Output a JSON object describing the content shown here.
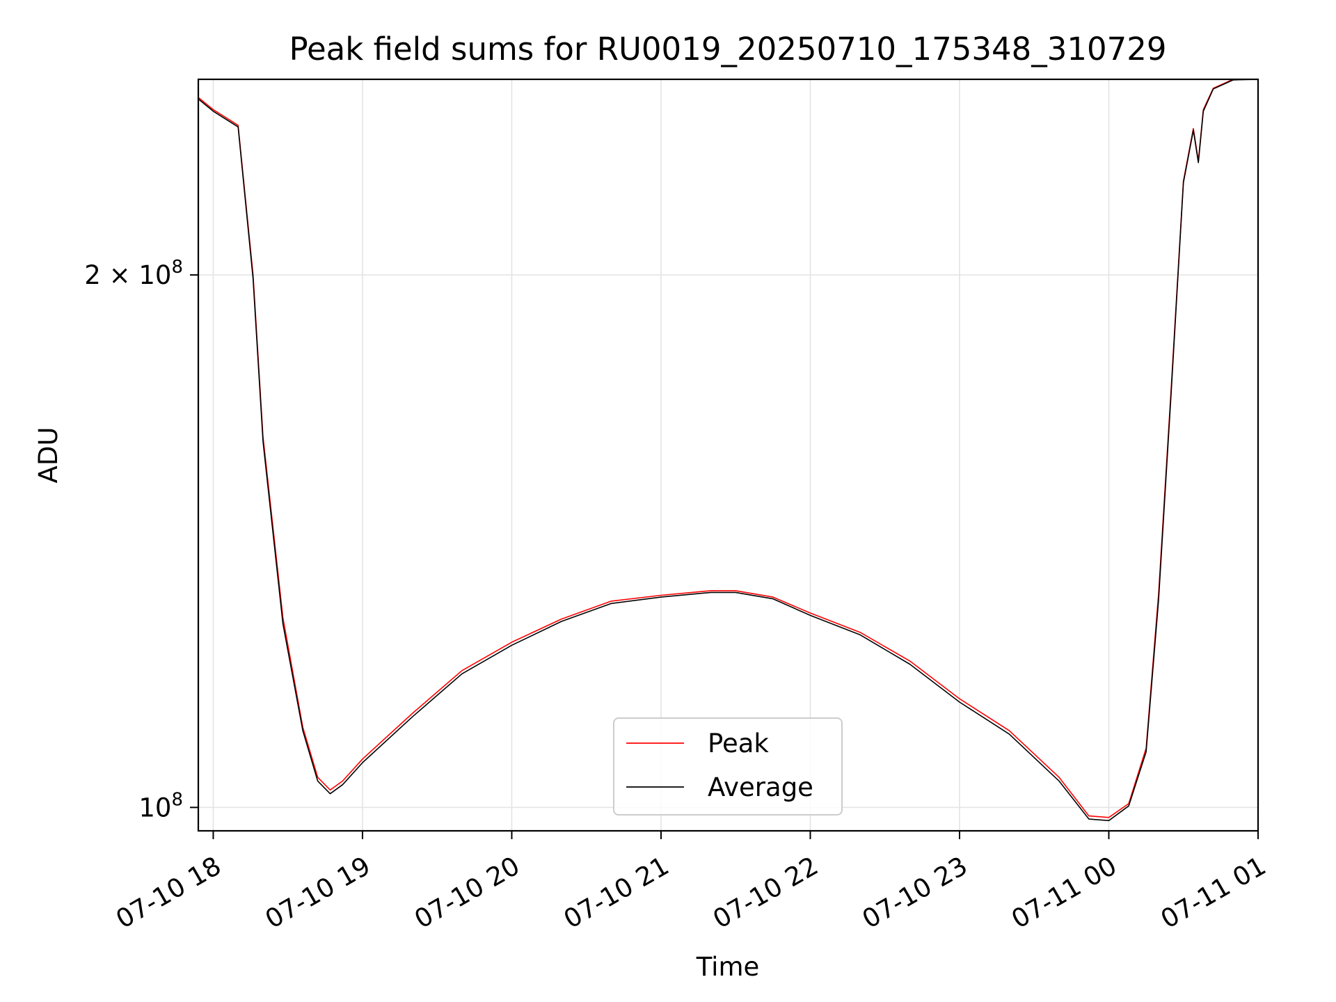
{
  "chart_data": {
    "type": "line",
    "title": "Peak field sums for RU0019_20250710_175348_310729",
    "xlabel": "Time",
    "ylabel": "ADU",
    "x_scale": "time",
    "y_scale": "log",
    "xlim": [
      "2025-07-10 17:54",
      "2025-07-11 01:00"
    ],
    "ylim": [
      97000000,
      258000000
    ],
    "x_ticks": [
      {
        "value": "2025-07-10 18:00",
        "label": "07-10 18"
      },
      {
        "value": "2025-07-10 19:00",
        "label": "07-10 19"
      },
      {
        "value": "2025-07-10 20:00",
        "label": "07-10 20"
      },
      {
        "value": "2025-07-10 21:00",
        "label": "07-10 21"
      },
      {
        "value": "2025-07-10 22:00",
        "label": "07-10 22"
      },
      {
        "value": "2025-07-10 23:00",
        "label": "07-10 23"
      },
      {
        "value": "2025-07-11 00:00",
        "label": "07-11 00"
      },
      {
        "value": "2025-07-11 01:00",
        "label": "07-11 01"
      }
    ],
    "y_ticks": [
      {
        "value": 100000000,
        "mantissa": "",
        "exponent": "8"
      },
      {
        "value": 200000000,
        "mantissa": "2",
        "exponent": "8"
      }
    ],
    "grid": true,
    "legend_position": "lower center",
    "colors": {
      "peak": "#ff0000",
      "average": "#000000"
    },
    "series": [
      {
        "name": "Peak",
        "color": "#ff0000",
        "x": [
          "2025-07-10 17:54",
          "2025-07-10 18:00",
          "2025-07-10 18:10",
          "2025-07-10 18:16",
          "2025-07-10 18:20",
          "2025-07-10 18:28",
          "2025-07-10 18:36",
          "2025-07-10 18:42",
          "2025-07-10 18:47",
          "2025-07-10 18:52",
          "2025-07-10 19:00",
          "2025-07-10 19:20",
          "2025-07-10 19:40",
          "2025-07-10 20:00",
          "2025-07-10 20:20",
          "2025-07-10 20:40",
          "2025-07-10 21:00",
          "2025-07-10 21:20",
          "2025-07-10 21:30",
          "2025-07-10 21:45",
          "2025-07-10 22:00",
          "2025-07-10 22:20",
          "2025-07-10 22:40",
          "2025-07-10 23:00",
          "2025-07-10 23:20",
          "2025-07-10 23:40",
          "2025-07-10 23:52",
          "2025-07-11 00:00",
          "2025-07-11 00:08",
          "2025-07-11 00:15",
          "2025-07-11 00:20",
          "2025-07-11 00:25",
          "2025-07-11 00:30",
          "2025-07-11 00:34",
          "2025-07-11 00:36",
          "2025-07-11 00:38",
          "2025-07-11 00:42",
          "2025-07-11 00:50",
          "2025-07-11 01:00"
        ],
        "y": [
          252000000,
          248000000,
          243000000,
          200000000,
          162000000,
          128000000,
          111000000,
          104000000,
          102300000,
          103500000,
          106500000,
          113000000,
          119500000,
          124000000,
          127800000,
          130800000,
          131800000,
          132600000,
          132600000,
          131500000,
          128800000,
          125600000,
          121000000,
          115200000,
          110500000,
          104000000,
          98900000,
          98700000,
          100500000,
          108000000,
          132000000,
          172000000,
          226000000,
          242000000,
          232000000,
          248000000,
          255000000,
          258000000,
          258000000
        ]
      },
      {
        "name": "Average",
        "color": "#000000",
        "x": [
          "2025-07-10 17:54",
          "2025-07-10 18:00",
          "2025-07-10 18:10",
          "2025-07-10 18:16",
          "2025-07-10 18:20",
          "2025-07-10 18:28",
          "2025-07-10 18:36",
          "2025-07-10 18:42",
          "2025-07-10 18:47",
          "2025-07-10 18:52",
          "2025-07-10 19:00",
          "2025-07-10 19:20",
          "2025-07-10 19:40",
          "2025-07-10 20:00",
          "2025-07-10 20:20",
          "2025-07-10 20:40",
          "2025-07-10 21:00",
          "2025-07-10 21:20",
          "2025-07-10 21:30",
          "2025-07-10 21:45",
          "2025-07-10 22:00",
          "2025-07-10 22:20",
          "2025-07-10 22:40",
          "2025-07-10 23:00",
          "2025-07-10 23:20",
          "2025-07-10 23:40",
          "2025-07-10 23:52",
          "2025-07-11 00:00",
          "2025-07-11 00:08",
          "2025-07-11 00:15",
          "2025-07-11 00:20",
          "2025-07-11 00:25",
          "2025-07-11 00:30",
          "2025-07-11 00:34",
          "2025-07-11 00:36",
          "2025-07-11 00:38",
          "2025-07-11 00:42",
          "2025-07-11 00:50",
          "2025-07-11 01:00"
        ],
        "y": [
          251500000,
          247500000,
          242500000,
          199000000,
          161000000,
          127000000,
          110500000,
          103500000,
          101800000,
          103000000,
          106000000,
          112500000,
          119000000,
          123500000,
          127400000,
          130400000,
          131500000,
          132300000,
          132300000,
          131200000,
          128400000,
          125200000,
          120500000,
          114700000,
          110000000,
          103500000,
          98500000,
          98300000,
          100200000,
          107500000,
          131000000,
          171000000,
          225500000,
          241500000,
          231500000,
          247500000,
          254800000,
          257800000,
          258000000
        ]
      }
    ]
  }
}
